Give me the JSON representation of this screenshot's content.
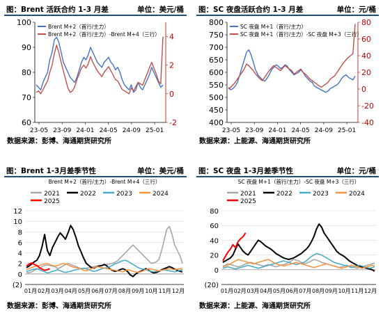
{
  "panels": [
    {
      "title": "图：Brent 活跃合约 1-3 月差",
      "unit": "单位：美元/桶",
      "source": "数据来源：彭博、海通期货研究所"
    },
    {
      "title": "图：SC 夜盘活跃合约 1-3 月差",
      "unit": "单位：元/桶",
      "source": "数据来源：上能源、海通期货研究所"
    },
    {
      "title": "图：Brent 1-3月差季节性",
      "unit": "单位：美元/桶",
      "source": "数据来源：彭博、海通期货研究所"
    },
    {
      "title": "图：SC 夜盘 1-3月差季节性",
      "unit": "单位：元/桶",
      "source": "数据来源：上能源、海通期货研究所"
    }
  ],
  "colors": {
    "blue": "#4472c4",
    "red": "#c0504d",
    "red_axis": "#c00000",
    "title_rule": "#1f4e79",
    "gray": "#a6a6a6",
    "black": "#000000",
    "cyan": "#4bacc6",
    "orange": "#f79646",
    "red_season": "#ff0000"
  },
  "chart_data": [
    {
      "type": "line",
      "x_ticks": [
        "23-05",
        "23-09",
        "24-01",
        "24-05",
        "24-09",
        "25-01"
      ],
      "y_left": {
        "ticks": [
          "60",
          "70",
          "80",
          "90",
          "100"
        ],
        "lim": [
          60,
          100
        ]
      },
      "y_right": {
        "ticks": [
          "-2",
          "0",
          "2",
          "4"
        ],
        "lim": [
          -2,
          5
        ]
      },
      "series": [
        {
          "name": "Brent M+2（首行/主力）",
          "axis": "left",
          "color": "blue",
          "values": [
            75,
            74,
            73,
            76,
            78,
            80,
            85,
            88,
            93,
            94,
            92,
            88,
            84,
            82,
            80,
            78,
            77,
            76,
            78,
            81,
            84,
            86,
            85,
            87,
            90,
            88,
            86,
            84,
            83,
            82,
            84,
            85,
            86,
            84,
            83,
            81,
            82,
            80,
            77,
            75,
            74,
            73,
            75,
            72,
            73,
            76,
            74,
            73,
            75,
            77,
            79,
            82,
            80,
            78,
            76,
            74,
            75
          ]
        },
        {
          "name": "Brent M+2（首行/主力）-Brent M+4（三行）",
          "axis": "right",
          "color": "red",
          "values": [
            0.1,
            0.2,
            0.0,
            0.3,
            0.6,
            0.9,
            1.5,
            2.0,
            2.8,
            3.4,
            2.9,
            2.2,
            1.6,
            1.0,
            0.4,
            0.1,
            0.2,
            0.5,
            1.0,
            1.4,
            1.8,
            2.0,
            1.8,
            2.1,
            2.6,
            2.2,
            1.9,
            1.6,
            1.4,
            1.2,
            1.5,
            1.7,
            1.9,
            1.6,
            1.3,
            1.0,
            0.9,
            0.6,
            0.3,
            0.2,
            0.1,
            0.0,
            0.4,
            0.2,
            0.5,
            0.8,
            0.7,
            0.6,
            1.0,
            1.4,
            1.8,
            2.2,
            1.8,
            1.4,
            0.9,
            0.7,
            4.0
          ]
        }
      ]
    },
    {
      "type": "line",
      "x_ticks": [
        "23-05",
        "23-09",
        "24-01",
        "24-05",
        "24-09",
        "25-01"
      ],
      "y_left": {
        "ticks": [
          "400",
          "450",
          "500",
          "550",
          "600",
          "650",
          "700",
          "750",
          "800"
        ],
        "lim": [
          400,
          800
        ]
      },
      "y_right": {
        "ticks": [
          "-40",
          "-20",
          "0",
          "20",
          "40",
          "60",
          "80"
        ],
        "lim": [
          -40,
          80
        ]
      },
      "series": [
        {
          "name": "SC 夜盘 M+1（首行/主力）",
          "axis": "left",
          "color": "blue",
          "values": [
            540,
            530,
            535,
            545,
            560,
            590,
            620,
            650,
            680,
            690,
            670,
            640,
            610,
            590,
            580,
            570,
            565,
            575,
            590,
            610,
            620,
            630,
            625,
            615,
            620,
            630,
            625,
            610,
            600,
            590,
            595,
            600,
            610,
            600,
            585,
            575,
            565,
            560,
            545,
            540,
            535,
            530,
            525,
            520,
            525,
            535,
            540,
            545,
            550,
            560,
            575,
            585,
            590,
            580,
            575,
            570,
            585
          ]
        },
        {
          "name": "SC 夜盘 M+1（首行/主力）-SC 夜盘 M+3（三行）",
          "axis": "right",
          "color": "red",
          "values": [
            0,
            2,
            5,
            8,
            12,
            16,
            20,
            24,
            30,
            28,
            25,
            22,
            18,
            15,
            12,
            10,
            14,
            18,
            22,
            25,
            28,
            26,
            24,
            22,
            25,
            28,
            26,
            24,
            22,
            18,
            20,
            22,
            24,
            20,
            18,
            15,
            12,
            10,
            8,
            6,
            4,
            2,
            4,
            6,
            8,
            12,
            14,
            16,
            20,
            24,
            28,
            32,
            35,
            38,
            40,
            42,
            78
          ]
        }
      ]
    },
    {
      "type": "line",
      "title": "Brent M+2（首行/主力）-Brent M+4（三行）",
      "x_ticks": [
        "01月",
        "02月",
        "03月",
        "04月",
        "05月",
        "06月",
        "07月",
        "08月",
        "09月",
        "10月",
        "11月",
        "12月"
      ],
      "y_ticks": [
        "(2)",
        "0",
        "2",
        "4",
        "6",
        "8",
        "10",
        "12"
      ],
      "ylim": [
        -2,
        12
      ],
      "series": [
        {
          "name": "2021",
          "color": "gray",
          "values": [
            0.3,
            0.2,
            0.4,
            0.7,
            0.9,
            1.0,
            1.4,
            1.6,
            1.7,
            1.6,
            1.5,
            1.4,
            1.0,
            1.2,
            1.5,
            1.8,
            2.0,
            1.8,
            1.6,
            1.4,
            1.2,
            1.0,
            1.0,
            1.1,
            1.2,
            1.3,
            1.4,
            1.5,
            1.6,
            1.6,
            1.7,
            1.8,
            1.9,
            2.0,
            2.2,
            2.5,
            3.0,
            3.5,
            4.0,
            4.5,
            5.0,
            5.5,
            5.0,
            4.5,
            4.0,
            3.5,
            3.0,
            2.5,
            2.0,
            2.1,
            2.3,
            2.8,
            4.5,
            6.5,
            8.5,
            9.0,
            7.5,
            5.5,
            4.5,
            3.5,
            2.0
          ]
        },
        {
          "name": "2022",
          "color": "black",
          "values": [
            1.2,
            1.5,
            1.9,
            2.3,
            2.6,
            3.5,
            5.2,
            7.5,
            4.5,
            3.5,
            5.0,
            6.0,
            7.0,
            7.8,
            7.2,
            6.6,
            7.8,
            9.2,
            8.4,
            7.0,
            5.3,
            4.2,
            3.0,
            2.0,
            1.6,
            1.2,
            1.1,
            1.4,
            1.5,
            1.6,
            1.8,
            1.5,
            1.0,
            0.7,
            0.5,
            0.6,
            0.8,
            1.0,
            0.8,
            0.4,
            -0.2,
            -0.5,
            0.0,
            0.3,
            0.5,
            0.8,
            1.0,
            0.7,
            0.4,
            0.2,
            0.3,
            0.5,
            0.8,
            1.0,
            1.2,
            1.4,
            1.2,
            0.9,
            0.7,
            0.5,
            0.4
          ]
        },
        {
          "name": "2023",
          "color": "cyan",
          "values": [
            0.5,
            0.6,
            0.8,
            0.9,
            1.0,
            0.8,
            0.6,
            0.4,
            0.2,
            0.3,
            0.5,
            0.6,
            0.8,
            0.6,
            0.4,
            0.3,
            0.4,
            0.5,
            0.7,
            0.8,
            0.9,
            1.0,
            1.1,
            1.0,
            0.8,
            0.6,
            0.5,
            0.6,
            0.8,
            1.0,
            1.1,
            1.2,
            1.4,
            1.6,
            1.9,
            2.1,
            2.3,
            2.5,
            2.6,
            2.4,
            2.1,
            1.8,
            1.5,
            1.2,
            1.0,
            0.9,
            0.8,
            0.6,
            0.5,
            0.4,
            0.5,
            0.6,
            0.7,
            0.8,
            0.7,
            0.6,
            0.5,
            0.4,
            0.5,
            0.7,
            0.8
          ]
        },
        {
          "name": "2024",
          "color": "orange",
          "values": [
            0.8,
            1.0,
            1.2,
            1.4,
            1.5,
            1.6,
            1.8,
            1.9,
            2.0,
            1.8,
            1.6,
            1.5,
            1.6,
            1.8,
            2.0,
            1.9,
            1.7,
            1.5,
            1.3,
            1.2,
            1.1,
            0.9,
            0.7,
            0.6,
            0.8,
            1.0,
            1.2,
            1.4,
            1.3,
            1.2,
            1.1,
            1.0,
            0.9,
            0.8,
            0.7,
            0.6,
            0.5,
            0.4,
            0.6,
            0.8,
            0.7,
            0.5,
            0.4,
            0.3,
            0.4,
            0.6,
            0.8,
            1.0,
            0.9,
            0.8,
            0.7,
            0.6,
            0.7,
            0.8,
            0.9,
            1.0,
            0.9,
            0.8,
            0.9,
            1.0,
            1.1
          ]
        },
        {
          "name": "2025",
          "color": "red_season",
          "values": [
            1.5,
            1.9,
            2.1,
            1.8,
            1.6,
            1.2,
            0.9,
            0.7,
            0.8,
            1.0
          ]
        }
      ]
    },
    {
      "type": "line",
      "title": "SC 夜盘 M+1（首行/主力）-SC 夜盘 M+3（三行）",
      "x_ticks": [
        "01月",
        "02月",
        "03月",
        "04月",
        "05月",
        "06月",
        "07月",
        "08月",
        "09月",
        "10月",
        "11月",
        "12月"
      ],
      "y_ticks": [
        "(20)",
        "0",
        "20",
        "40",
        "60",
        "80"
      ],
      "ylim": [
        -20,
        80
      ],
      "series": [
        {
          "name": "2021",
          "color": "gray",
          "values": [
            5,
            6,
            8,
            7,
            6,
            5,
            4,
            5,
            6,
            8,
            9,
            10,
            9,
            8,
            7,
            6,
            5,
            6,
            7,
            6,
            5,
            4,
            5,
            6,
            7,
            8,
            10,
            12,
            14,
            13,
            12,
            10,
            8,
            9,
            10,
            12,
            14,
            13,
            12,
            10,
            9,
            8,
            7,
            6,
            5,
            4,
            3,
            4,
            5,
            6,
            5,
            4,
            3,
            2,
            3,
            4,
            5,
            6,
            7,
            8,
            9
          ]
        },
        {
          "name": "2022",
          "color": "black",
          "values": [
            10,
            12,
            14,
            16,
            20,
            28,
            35,
            30,
            25,
            22,
            20,
            25,
            30,
            35,
            40,
            38,
            35,
            32,
            30,
            28,
            25,
            22,
            20,
            18,
            16,
            15,
            14,
            15,
            16,
            18,
            20,
            22,
            25,
            28,
            32,
            38,
            45,
            55,
            62,
            58,
            50,
            45,
            40,
            35,
            30,
            25,
            22,
            20,
            18,
            15,
            12,
            10,
            8,
            6,
            5,
            4,
            3,
            2,
            1,
            0,
            -2
          ]
        },
        {
          "name": "2023",
          "color": "cyan",
          "values": [
            2,
            3,
            4,
            3,
            2,
            1,
            2,
            3,
            4,
            5,
            6,
            5,
            4,
            3,
            2,
            3,
            4,
            5,
            6,
            7,
            8,
            9,
            10,
            11,
            12,
            11,
            10,
            9,
            8,
            7,
            8,
            9,
            10,
            12,
            15,
            18,
            20,
            22,
            21,
            20,
            18,
            16,
            14,
            12,
            10,
            9,
            8,
            7,
            6,
            5,
            4,
            3,
            4,
            5,
            6,
            5,
            4,
            3,
            2,
            3,
            4
          ]
        },
        {
          "name": "2024",
          "color": "orange",
          "values": [
            4,
            5,
            6,
            8,
            10,
            12,
            14,
            13,
            12,
            11,
            10,
            9,
            8,
            9,
            10,
            11,
            12,
            13,
            14,
            12,
            10,
            8,
            7,
            6,
            5,
            6,
            7,
            8,
            9,
            10,
            9,
            8,
            7,
            6,
            5,
            4,
            3,
            4,
            5,
            6,
            7,
            8,
            7,
            6,
            5,
            4,
            3,
            2,
            3,
            4,
            5,
            6,
            5,
            4,
            3,
            2,
            3,
            4,
            5,
            6,
            5
          ]
        },
        {
          "name": "2025",
          "color": "red_season",
          "values": [
            12,
            18,
            24,
            28,
            34,
            30,
            38,
            42,
            45,
            50
          ]
        }
      ]
    }
  ]
}
